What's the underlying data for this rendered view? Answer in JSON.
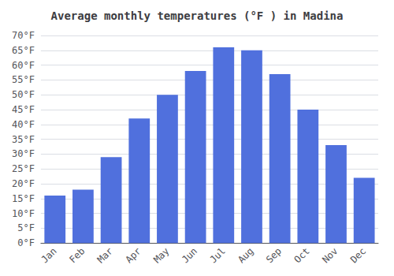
{
  "chart_data": {
    "type": "bar",
    "title": "Average monthly temperatures (°F ) in Madina",
    "categories": [
      "Jan",
      "Feb",
      "Mar",
      "Apr",
      "May",
      "Jun",
      "Jul",
      "Aug",
      "Sep",
      "Oct",
      "Nov",
      "Dec"
    ],
    "values": [
      16,
      18,
      29,
      42,
      50,
      58,
      66,
      65,
      57,
      45,
      33,
      22
    ],
    "ylim": [
      0,
      70
    ],
    "yticks": [
      {
        "value": 0,
        "label": "0°F"
      },
      {
        "value": 5,
        "label": "5°F"
      },
      {
        "value": 10,
        "label": "10°F"
      },
      {
        "value": 15,
        "label": "15°F"
      },
      {
        "value": 20,
        "label": "20°F"
      },
      {
        "value": 25,
        "label": "25°F"
      },
      {
        "value": 30,
        "label": "30°F"
      },
      {
        "value": 35,
        "label": "35°F"
      },
      {
        "value": 40,
        "label": "40°F"
      },
      {
        "value": 45,
        "label": "45°F"
      },
      {
        "value": 50,
        "label": "50°F"
      },
      {
        "value": 55,
        "label": "55°F"
      },
      {
        "value": 60,
        "label": "60°F"
      },
      {
        "value": 65,
        "label": "65°F"
      },
      {
        "value": 70,
        "label": "70°F"
      }
    ],
    "grid": true
  }
}
